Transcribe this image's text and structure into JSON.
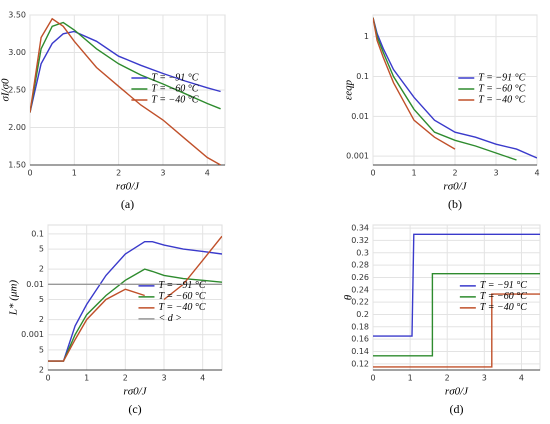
{
  "chart_data": [
    {
      "type": "line",
      "caption": "(a)",
      "xlabel": "rσ0/J",
      "ylabel": "σI/σ0",
      "legend": "center-right",
      "grid": true,
      "x": [
        0,
        0.25,
        0.5,
        0.75,
        1,
        1.5,
        2,
        2.5,
        3,
        3.5,
        4,
        4.3
      ],
      "xlim": [
        0,
        4.4
      ],
      "xticks": [
        0,
        1,
        2,
        3,
        4
      ],
      "ylim": [
        1.5,
        3.5
      ],
      "yticks": [
        {
          "value": 1.5,
          "label": "1.50"
        },
        {
          "value": 2,
          "label": "2.00"
        },
        {
          "value": 2.5,
          "label": "2.50"
        },
        {
          "value": 3,
          "label": "3.00"
        },
        {
          "value": 3.5,
          "label": "3.50"
        }
      ],
      "series": [
        {
          "name": "T = −91 °C",
          "color": "#3a3acb",
          "values": [
            2.2,
            2.85,
            3.12,
            3.25,
            3.28,
            3.15,
            2.95,
            2.83,
            2.72,
            2.62,
            2.53,
            2.48
          ]
        },
        {
          "name": "T = −60 °C",
          "color": "#2e8b2e",
          "values": [
            2.2,
            3.05,
            3.35,
            3.4,
            3.3,
            3.05,
            2.85,
            2.7,
            2.58,
            2.45,
            2.32,
            2.25
          ]
        },
        {
          "name": "T = −40 °C",
          "color": "#c0502a",
          "values": [
            2.2,
            3.2,
            3.45,
            3.35,
            3.15,
            2.8,
            2.55,
            2.3,
            2.1,
            1.85,
            1.6,
            1.5
          ]
        }
      ]
    },
    {
      "type": "line",
      "caption": "(b)",
      "xlabel": "rσ0/J",
      "ylabel": "εeqp",
      "legend": "center-right",
      "grid": true,
      "log_y": true,
      "x": [
        0,
        0.1,
        0.25,
        0.5,
        1,
        1.5,
        2,
        2.5,
        3,
        3.5,
        4
      ],
      "xlim": [
        0,
        4
      ],
      "xticks": [
        0,
        1,
        2,
        3,
        4
      ],
      "ylim": [
        0.0006,
        3.5
      ],
      "yticks": [
        0.001,
        0.01,
        0.1,
        1
      ],
      "series": [
        {
          "name": "T = −91 °C",
          "color": "#3a3acb",
          "values": [
            3,
            1.2,
            0.5,
            0.15,
            0.03,
            0.008,
            0.004,
            0.003,
            0.002,
            0.0015,
            0.0009
          ]
        },
        {
          "name": "T = −60 °C",
          "color": "#2e8b2e",
          "values": [
            3,
            1,
            0.4,
            0.1,
            0.015,
            0.004,
            0.0025,
            0.0018,
            0.0012,
            0.0008,
            null
          ]
        },
        {
          "name": "T = −40 °C",
          "color": "#c0502a",
          "values": [
            3,
            0.8,
            0.3,
            0.07,
            0.008,
            0.003,
            0.0015,
            null,
            null,
            null,
            null
          ]
        }
      ]
    },
    {
      "type": "line",
      "caption": "(c)",
      "xlabel": "rσ0/J",
      "ylabel": "L* (μm)",
      "legend": "center-right",
      "grid": true,
      "log_y": true,
      "x": [
        0,
        0.4,
        0.7,
        1,
        1.5,
        2,
        2.5,
        2.7,
        3,
        3.5,
        4,
        4.5
      ],
      "xlim": [
        0,
        4.5
      ],
      "xticks": [
        0,
        1,
        2,
        3,
        4
      ],
      "ylim": [
        0.0002,
        0.15
      ],
      "yticks": [
        {
          "value": 0.0002,
          "label": "2"
        },
        {
          "value": 0.0005,
          "label": "5"
        },
        0.001,
        {
          "value": 0.002,
          "label": "2"
        },
        {
          "value": 0.005,
          "label": "5"
        },
        0.01,
        {
          "value": 0.02,
          "label": "2"
        },
        {
          "value": 0.05,
          "label": "5"
        },
        0.1
      ],
      "series": [
        {
          "name": "T = −91 °C",
          "color": "#3a3acb",
          "values": [
            0.0003,
            0.0003,
            0.0015,
            0.004,
            0.015,
            0.04,
            0.07,
            0.07,
            0.06,
            0.05,
            0.045,
            0.04
          ]
        },
        {
          "name": "T = −60 °C",
          "color": "#2e8b2e",
          "values": [
            0.0003,
            0.0003,
            0.001,
            0.0025,
            0.006,
            0.012,
            0.02,
            0.018,
            0.015,
            0.013,
            0.012,
            0.011
          ]
        },
        {
          "name": "T = −40 °C",
          "color": "#c0502a",
          "values": [
            0.0003,
            0.0003,
            0.0008,
            0.002,
            0.005,
            0.008,
            0.006,
            null,
            0.005,
            0.01,
            0.03,
            0.09
          ]
        },
        {
          "name": "< d >",
          "color": "#999999",
          "values": [
            0.01,
            0.01,
            0.01,
            0.01,
            0.01,
            0.01,
            0.01,
            0.01,
            0.01,
            0.01,
            0.01,
            0.01
          ]
        }
      ]
    },
    {
      "type": "line",
      "caption": "(d)",
      "xlabel": "rσ0/J",
      "ylabel": "θ",
      "legend": "center-right",
      "grid": true,
      "x": [
        0,
        1.05,
        1.1,
        1.6,
        1.6,
        3.2,
        3.2,
        4.5
      ],
      "xlim": [
        0,
        4.5
      ],
      "xticks": [
        0,
        1,
        2,
        3,
        4
      ],
      "ylim": [
        0.11,
        0.345
      ],
      "yticks": [
        0.12,
        0.14,
        0.16,
        0.18,
        0.2,
        0.22,
        0.24,
        0.26,
        0.28,
        0.3,
        0.32,
        0.34
      ],
      "series": [
        {
          "name": "T = −91 °C",
          "color": "#3a3acb",
          "values": [
            0.165,
            0.165,
            0.33,
            0.33,
            0.33,
            0.33,
            0.33,
            0.33
          ]
        },
        {
          "name": "T = −60 °C",
          "color": "#2e8b2e",
          "values": [
            0.133,
            0.133,
            0.133,
            0.133,
            0.266,
            0.266,
            0.266,
            0.266
          ]
        },
        {
          "name": "T = −40 °C",
          "color": "#c0502a",
          "values": [
            0.115,
            0.115,
            0.115,
            0.115,
            0.115,
            0.115,
            0.233,
            0.233
          ]
        }
      ]
    }
  ]
}
